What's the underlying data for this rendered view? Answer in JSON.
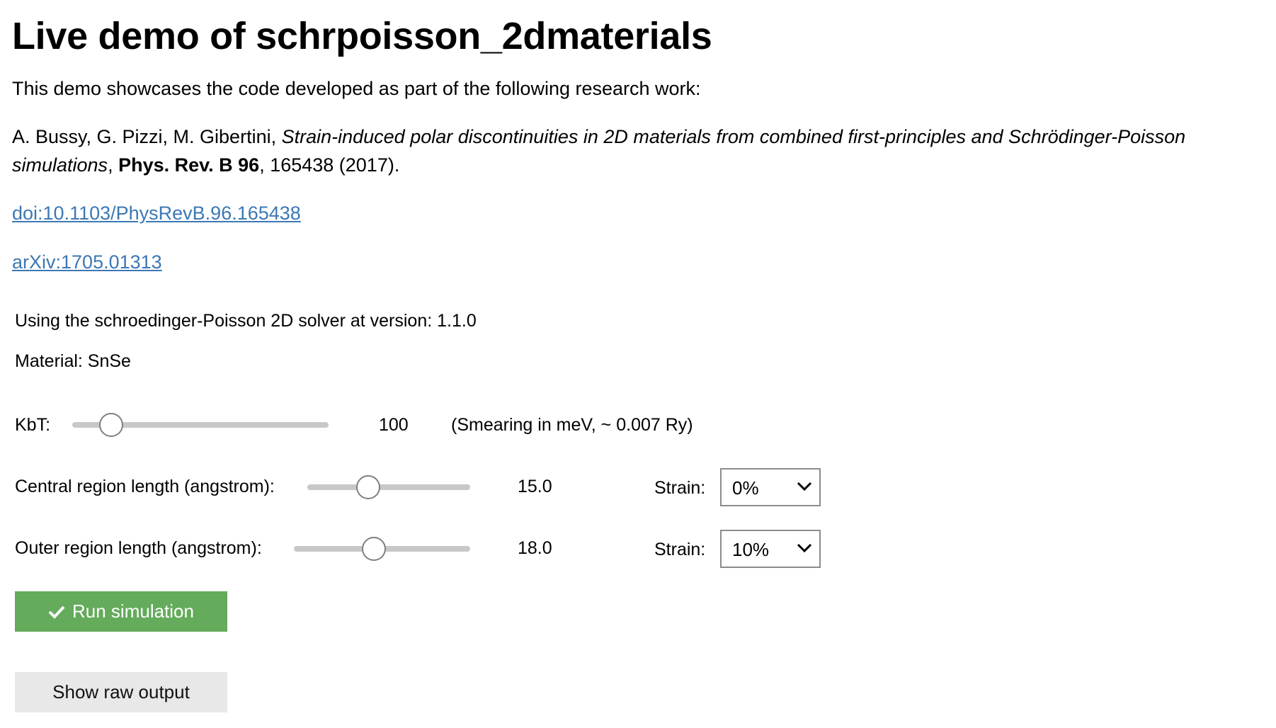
{
  "title": "Live demo of schrpoisson_2dmaterials",
  "intro": "This demo showcases the code developed as part of the following research work:",
  "citation": {
    "authors": "A. Bussy, G. Pizzi, M. Gibertini, ",
    "paper_title_line1": "Strain-induced polar discontinuities in 2D materials from combined first-principles and Schrödinger-Poisson",
    "paper_title_line2": "simulations",
    "sep": ", ",
    "journal": "Phys. Rev. B 96",
    "rest": ", 165438 (2017)."
  },
  "links": {
    "doi": "doi:10.1103/PhysRevB.96.165438",
    "arxiv": "arXiv:1705.01313"
  },
  "version_text": "Using the schroedinger-Poisson 2D solver at version: 1.1.0",
  "material_text": "Material: SnSe",
  "kbt": {
    "label": "KbT:",
    "value": "100",
    "note": "(Smearing in meV, ~ 0.007 Ry)",
    "slider_fraction": 0.15
  },
  "central": {
    "label": "Central region length (angstrom):",
    "value": "15.0",
    "slider_fraction": 0.37,
    "strain_label": "Strain:",
    "strain_value": "0%"
  },
  "outer": {
    "label": "Outer region length (angstrom):",
    "value": "18.0",
    "slider_fraction": 0.45,
    "strain_label": "Strain:",
    "strain_value": "10%"
  },
  "buttons": {
    "run": "Run simulation",
    "raw": "Show raw output"
  },
  "colors": {
    "link": "#3c78b5",
    "run_button": "#64ab5b",
    "raw_button": "#e8e8e8"
  }
}
